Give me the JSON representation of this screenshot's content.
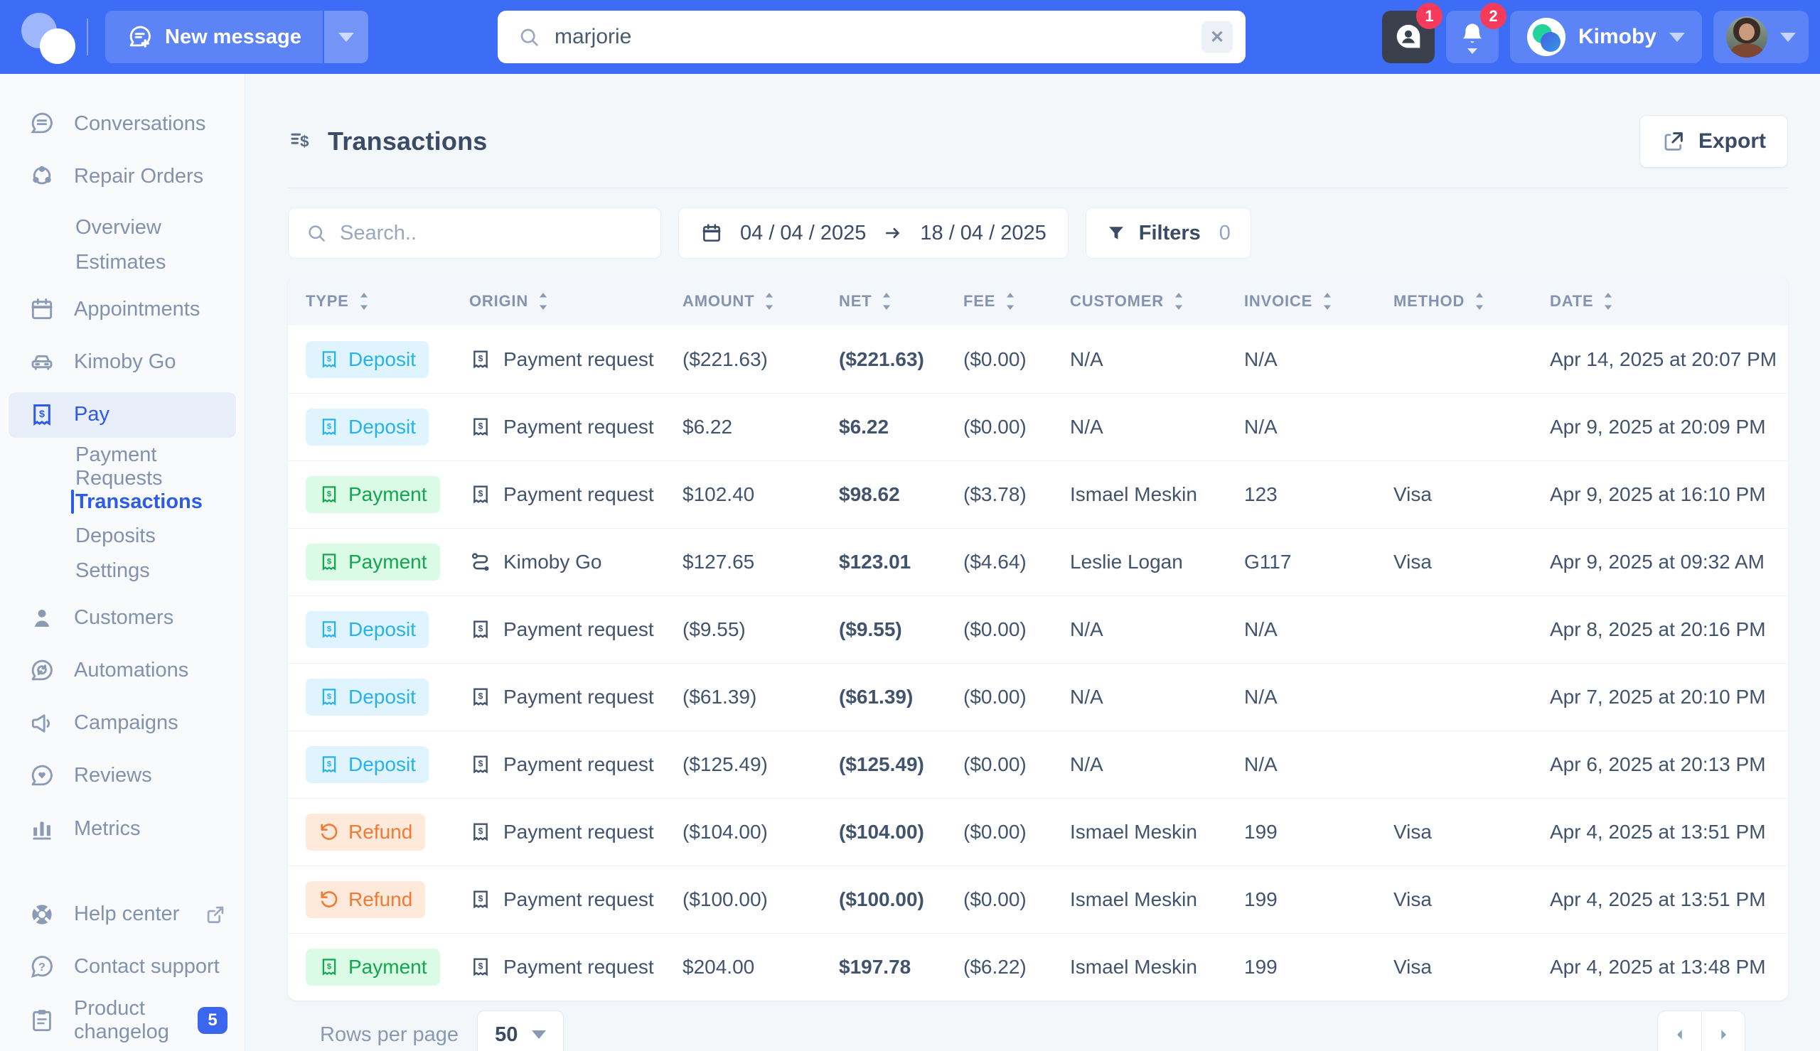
{
  "colors": {
    "topbar_bg": "#3D6DF6",
    "accent_blue": "#2D5BE9",
    "deposit_text": "#29B2E9",
    "deposit_bg": "#DFF4FE",
    "payment_text": "#12A64F",
    "payment_bg": "#DBFBE6",
    "refund_text": "#F07A36",
    "refund_bg": "#FEE9DB",
    "notification_red": "#F43B5C"
  },
  "topbar": {
    "new_message_label": "New message",
    "search_value": "marjorie",
    "conversations_badge": "1",
    "notifications_badge": "2",
    "org_name": "Kimoby"
  },
  "sidebar": {
    "items": [
      {
        "label": "Conversations"
      },
      {
        "label": "Repair Orders"
      },
      {
        "label": "Overview"
      },
      {
        "label": "Estimates"
      },
      {
        "label": "Appointments"
      },
      {
        "label": "Kimoby Go"
      },
      {
        "label": "Pay"
      },
      {
        "label": "Payment Requests"
      },
      {
        "label": "Transactions"
      },
      {
        "label": "Deposits"
      },
      {
        "label": "Settings"
      },
      {
        "label": "Customers"
      },
      {
        "label": "Automations"
      },
      {
        "label": "Campaigns"
      },
      {
        "label": "Reviews"
      },
      {
        "label": "Metrics"
      },
      {
        "label": "Help center"
      },
      {
        "label": "Contact support"
      },
      {
        "label": "Product changelog",
        "badge": "5"
      }
    ]
  },
  "page": {
    "title": "Transactions",
    "export_label": "Export"
  },
  "filters": {
    "search_placeholder": "Search..",
    "date_from": "04 / 04 / 2025",
    "date_to": "18 / 04 / 2025",
    "filters_label": "Filters",
    "filters_count": "0"
  },
  "table": {
    "columns": [
      "TYPE",
      "ORIGIN",
      "AMOUNT",
      "NET",
      "FEE",
      "CUSTOMER",
      "INVOICE",
      "METHOD",
      "DATE"
    ],
    "rows": [
      {
        "type": "Deposit",
        "origin": "Payment request",
        "amount": "($221.63)",
        "net": "($221.63)",
        "fee": "($0.00)",
        "customer": "N/A",
        "invoice": "N/A",
        "method": "",
        "date": "Apr 14, 2025 at 20:07 PM"
      },
      {
        "type": "Deposit",
        "origin": "Payment request",
        "amount": "$6.22",
        "net": "$6.22",
        "fee": "($0.00)",
        "customer": "N/A",
        "invoice": "N/A",
        "method": "",
        "date": "Apr 9, 2025 at 20:09 PM"
      },
      {
        "type": "Payment",
        "origin": "Payment request",
        "amount": "$102.40",
        "net": "$98.62",
        "fee": "($3.78)",
        "customer": "Ismael Meskin",
        "invoice": "123",
        "method": "Visa",
        "date": "Apr 9, 2025 at 16:10 PM"
      },
      {
        "type": "Payment",
        "origin": "Kimoby Go",
        "amount": "$127.65",
        "net": "$123.01",
        "fee": "($4.64)",
        "customer": "Leslie Logan",
        "invoice": "G117",
        "method": "Visa",
        "date": "Apr 9, 2025 at 09:32 AM"
      },
      {
        "type": "Deposit",
        "origin": "Payment request",
        "amount": "($9.55)",
        "net": "($9.55)",
        "fee": "($0.00)",
        "customer": "N/A",
        "invoice": "N/A",
        "method": "",
        "date": "Apr 8, 2025 at 20:16 PM"
      },
      {
        "type": "Deposit",
        "origin": "Payment request",
        "amount": "($61.39)",
        "net": "($61.39)",
        "fee": "($0.00)",
        "customer": "N/A",
        "invoice": "N/A",
        "method": "",
        "date": "Apr 7, 2025 at 20:10 PM"
      },
      {
        "type": "Deposit",
        "origin": "Payment request",
        "amount": "($125.49)",
        "net": "($125.49)",
        "fee": "($0.00)",
        "customer": "N/A",
        "invoice": "N/A",
        "method": "",
        "date": "Apr 6, 2025 at 20:13 PM"
      },
      {
        "type": "Refund",
        "origin": "Payment request",
        "amount": "($104.00)",
        "net": "($104.00)",
        "fee": "($0.00)",
        "customer": "Ismael Meskin",
        "invoice": "199",
        "method": "Visa",
        "date": "Apr 4, 2025 at 13:51 PM"
      },
      {
        "type": "Refund",
        "origin": "Payment request",
        "amount": "($100.00)",
        "net": "($100.00)",
        "fee": "($0.00)",
        "customer": "Ismael Meskin",
        "invoice": "199",
        "method": "Visa",
        "date": "Apr 4, 2025 at 13:51 PM"
      },
      {
        "type": "Payment",
        "origin": "Payment request",
        "amount": "$204.00",
        "net": "$197.78",
        "fee": "($6.22)",
        "customer": "Ismael Meskin",
        "invoice": "199",
        "method": "Visa",
        "date": "Apr 4, 2025 at 13:48 PM"
      }
    ]
  },
  "pagination": {
    "rows_per_page_label": "Rows per page",
    "rows_per_page_value": "50"
  }
}
